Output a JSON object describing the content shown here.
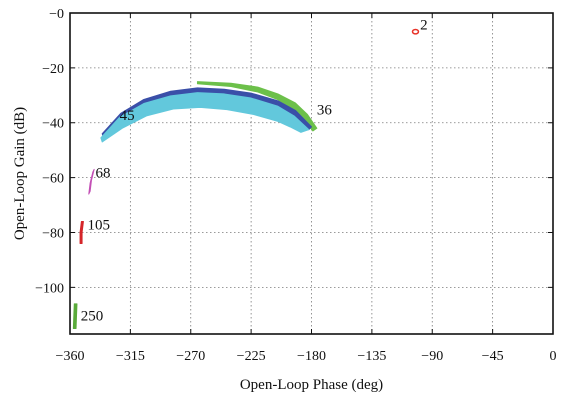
{
  "chart_data": {
    "type": "scatter",
    "title": "",
    "xlabel": "Open-Loop Phase (deg)",
    "ylabel": "Open-Loop Gain (dB)",
    "xlim": [
      -360,
      0
    ],
    "ylim": [
      -117,
      0
    ],
    "x_ticks": [
      -360,
      -315,
      -270,
      -225,
      -180,
      -135,
      -90,
      -45,
      0
    ],
    "x_tick_labels": [
      "−360",
      "−315",
      "−270",
      "−225",
      "−180",
      "−135",
      "−90",
      "−45",
      "0"
    ],
    "y_ticks": [
      0,
      -20,
      -40,
      -60,
      -80,
      -100
    ],
    "y_tick_labels": [
      "−0",
      "−20",
      "−40",
      "−60",
      "−80",
      "−100"
    ],
    "grid": true,
    "legend": "none",
    "series": [
      {
        "color": "#e8342a",
        "kind": "blob",
        "points": [
          [
            -103,
            -7
          ],
          [
            -102,
            -6.6
          ]
        ]
      },
      {
        "color": "#6cc04a",
        "kind": "band",
        "upper": [
          [
            -265,
            -25
          ],
          [
            -240,
            -25.6
          ],
          [
            -220,
            -27
          ],
          [
            -205,
            -29.5
          ],
          [
            -192,
            -32.8
          ],
          [
            -183,
            -37
          ],
          [
            -176,
            -42
          ]
        ],
        "lower": [
          [
            -265,
            -25.8
          ],
          [
            -240,
            -26.8
          ],
          [
            -220,
            -28.8
          ],
          [
            -205,
            -31.6
          ],
          [
            -193,
            -35.2
          ],
          [
            -185,
            -39.2
          ],
          [
            -179,
            -43
          ]
        ]
      },
      {
        "color": "#3a4fa8",
        "kind": "band",
        "upper": [
          [
            -336,
            -44
          ],
          [
            -322,
            -36.5
          ],
          [
            -305,
            -31.5
          ],
          [
            -285,
            -28.5
          ],
          [
            -265,
            -27.3
          ],
          [
            -245,
            -27.8
          ],
          [
            -225,
            -29.2
          ],
          [
            -205,
            -32
          ],
          [
            -192,
            -35.5
          ],
          [
            -180,
            -41.5
          ]
        ],
        "lower": [
          [
            -335,
            -45.5
          ],
          [
            -321,
            -38.2
          ],
          [
            -305,
            -33.3
          ],
          [
            -285,
            -30.4
          ],
          [
            -265,
            -29.2
          ],
          [
            -245,
            -29.8
          ],
          [
            -225,
            -31.3
          ],
          [
            -205,
            -34.3
          ],
          [
            -192,
            -37.7
          ],
          [
            -182,
            -42.5
          ]
        ]
      },
      {
        "color": "#62c8dc",
        "kind": "band",
        "upper": [
          [
            -337,
            -45.5
          ],
          [
            -323,
            -38
          ],
          [
            -305,
            -33
          ],
          [
            -285,
            -30.2
          ],
          [
            -265,
            -29
          ],
          [
            -245,
            -29.5
          ],
          [
            -225,
            -31
          ],
          [
            -205,
            -34
          ],
          [
            -193,
            -37.5
          ],
          [
            -182,
            -42.5
          ]
        ],
        "lower": [
          [
            -336,
            -47
          ],
          [
            -321,
            -42
          ],
          [
            -303,
            -37.5
          ],
          [
            -283,
            -35
          ],
          [
            -263,
            -34.4
          ],
          [
            -243,
            -35.2
          ],
          [
            -223,
            -37
          ],
          [
            -205,
            -39.5
          ],
          [
            -196,
            -41.5
          ],
          [
            -188,
            -43.5
          ]
        ]
      },
      {
        "color": "#c34fb5",
        "kind": "band",
        "upper": [
          [
            -345,
            -65
          ],
          [
            -344,
            -61
          ],
          [
            -342,
            -57
          ]
        ],
        "lower": [
          [
            -346,
            -66
          ],
          [
            -345,
            -62
          ],
          [
            -343,
            -58
          ]
        ]
      },
      {
        "color": "#d5262a",
        "kind": "band",
        "upper": [
          [
            -351,
            -84
          ],
          [
            -351,
            -80
          ],
          [
            -350,
            -76
          ]
        ],
        "lower": [
          [
            -352.5,
            -84
          ],
          [
            -352.5,
            -80
          ],
          [
            -351.5,
            -76
          ]
        ]
      },
      {
        "color": "#5aab3a",
        "kind": "band",
        "upper": [
          [
            -355.5,
            -115
          ],
          [
            -355.2,
            -111
          ],
          [
            -354.8,
            -106
          ]
        ],
        "lower": [
          [
            -357.5,
            -115
          ],
          [
            -357.2,
            -111
          ],
          [
            -356.8,
            -106
          ]
        ]
      }
    ],
    "annotations": [
      {
        "text": "2",
        "x": -99,
        "y": -6
      },
      {
        "text": "36",
        "x": -176,
        "y": -37
      },
      {
        "text": "45",
        "x": -323,
        "y": -39
      },
      {
        "text": "68",
        "x": -341,
        "y": -60
      },
      {
        "text": "105",
        "x": -347,
        "y": -79
      },
      {
        "text": "250",
        "x": -352,
        "y": -112
      }
    ]
  }
}
